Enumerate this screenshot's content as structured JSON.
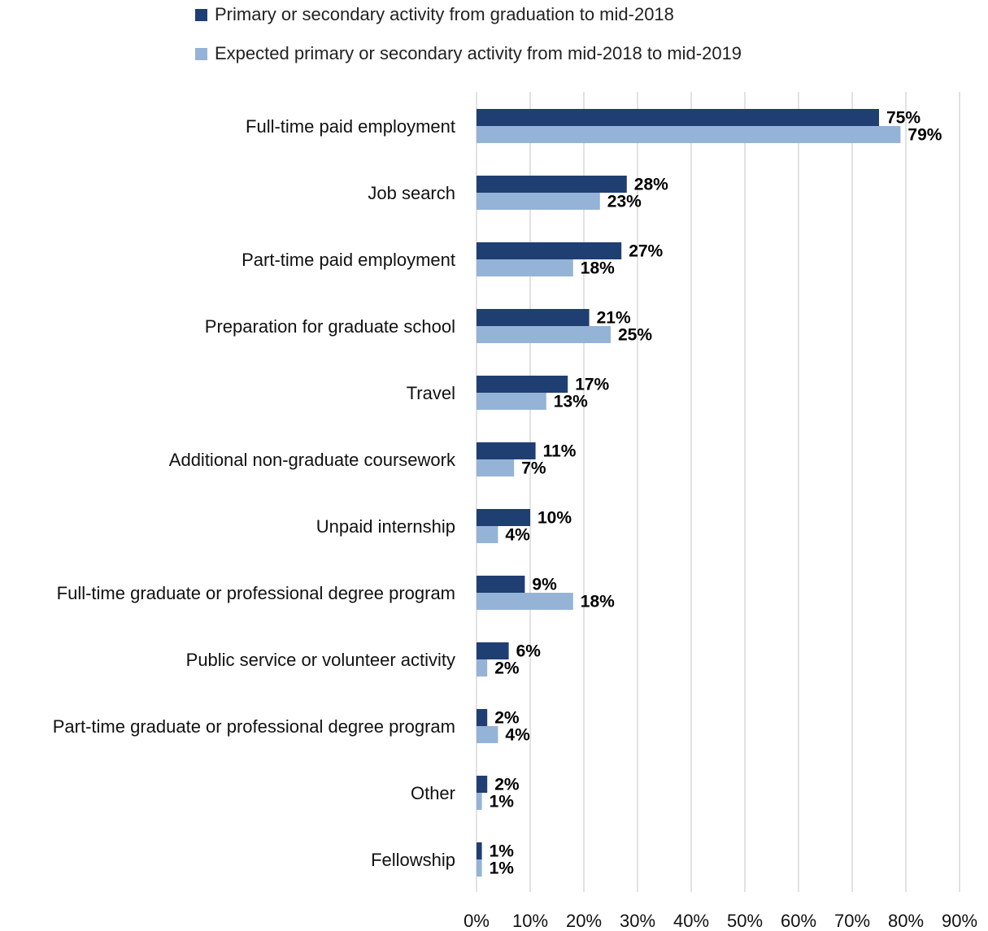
{
  "colors": {
    "primary_series": "#1f3f73",
    "expected_series": "#95b3d7",
    "gridline": "#d9d9d9"
  },
  "chart_data": {
    "type": "bar",
    "orientation": "horizontal",
    "title": "",
    "xlabel": "",
    "ylabel": "",
    "xlim": [
      0,
      90
    ],
    "grid": true,
    "legend_position": "top",
    "ticks": [
      "0%",
      "10%",
      "20%",
      "30%",
      "40%",
      "50%",
      "60%",
      "70%",
      "80%",
      "90%"
    ],
    "categories": [
      "Full-time paid employment",
      "Job search",
      "Part-time paid employment",
      "Preparation for graduate school",
      "Travel",
      "Additional non-graduate coursework",
      "Unpaid internship",
      "Full-time graduate or professional degree program",
      "Public service or volunteer activity",
      "Part-time graduate or professional degree program",
      "Other",
      "Fellowship"
    ],
    "series": [
      {
        "name": "Primary or secondary activity from graduation to mid-2018",
        "values": [
          75,
          28,
          27,
          21,
          17,
          11,
          10,
          9,
          6,
          2,
          2,
          1
        ],
        "labels": [
          "75%",
          "28%",
          "27%",
          "21%",
          "17%",
          "11%",
          "10%",
          "9%",
          "6%",
          "2%",
          "2%",
          "1%"
        ]
      },
      {
        "name": "Expected primary or secondary activity from mid-2018 to mid-2019",
        "values": [
          79,
          23,
          18,
          25,
          13,
          7,
          4,
          18,
          2,
          4,
          1,
          1
        ],
        "labels": [
          "79%",
          "23%",
          "18%",
          "25%",
          "13%",
          "7%",
          "4%",
          "18%",
          "2%",
          "4%",
          "1%",
          "1%"
        ]
      }
    ]
  }
}
